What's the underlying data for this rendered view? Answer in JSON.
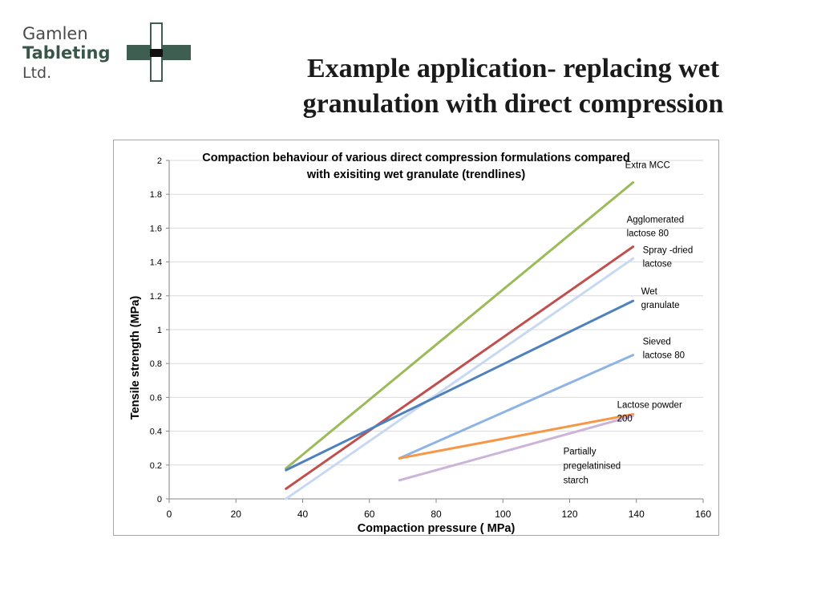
{
  "logo": {
    "line1": "Gamlen",
    "line2": "Tableting",
    "line3": "Ltd."
  },
  "slide": {
    "title_line1": "Example application- replacing wet",
    "title_line2": "granulation with direct compression"
  },
  "chart_data": {
    "type": "line",
    "title_line1": "Compaction behaviour of various direct compression formulations compared",
    "title_line2": "with exisiting wet granulate (trendlines)",
    "xlabel": "Compaction pressure ( MPa)",
    "ylabel": "Tensile strength (MPa)",
    "xlim": [
      0,
      160
    ],
    "ylim": [
      0,
      2
    ],
    "xticks": [
      0,
      20,
      40,
      60,
      80,
      100,
      120,
      140,
      160
    ],
    "yticks": [
      0,
      0.2,
      0.4,
      0.6,
      0.8,
      1,
      1.2,
      1.4,
      1.6,
      1.8,
      2
    ],
    "grid": true,
    "series": [
      {
        "label_lines": [
          "Extra MCC"
        ],
        "color": "#9bbb59",
        "x": [
          35,
          139
        ],
        "y": [
          0.18,
          1.87
        ]
      },
      {
        "label_lines": [
          "Agglomerated",
          "lactose 80"
        ],
        "color": "#c0504d",
        "x": [
          35,
          139
        ],
        "y": [
          0.06,
          1.49
        ]
      },
      {
        "label_lines": [
          "Spray -dried",
          "lactose"
        ],
        "color": "#c6d9f1",
        "x": [
          35,
          139
        ],
        "y": [
          0.0,
          1.42
        ]
      },
      {
        "label_lines": [
          "Wet",
          "granulate"
        ],
        "color": "#4f81bd",
        "x": [
          35,
          139
        ],
        "y": [
          0.17,
          1.17
        ]
      },
      {
        "label_lines": [
          "Sieved",
          "lactose 80"
        ],
        "color": "#8eb4e3",
        "x": [
          69,
          139
        ],
        "y": [
          0.24,
          0.85
        ]
      },
      {
        "label_lines": [
          "Lactose powder",
          "200"
        ],
        "color": "#f79646",
        "x": [
          69,
          139
        ],
        "y": [
          0.24,
          0.5
        ]
      },
      {
        "label_lines": [
          "Partially",
          "pregelatinised",
          "starch"
        ],
        "color": "#ccb4d9",
        "x": [
          69,
          139
        ],
        "y": [
          0.11,
          0.49
        ]
      }
    ]
  }
}
